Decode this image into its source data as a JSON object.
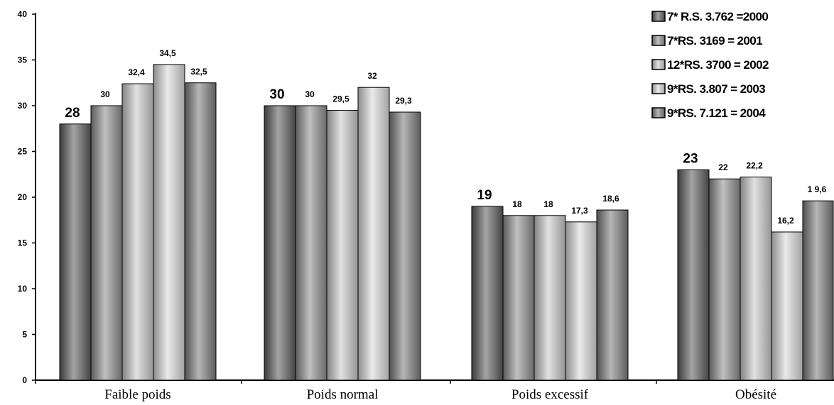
{
  "chart_data": {
    "type": "bar",
    "categories": [
      "Faible poids",
      "Poids normal",
      "Poids excessif",
      "Obésité"
    ],
    "ylim": [
      0,
      40
    ],
    "yticks": [
      0,
      5,
      10,
      15,
      20,
      25,
      30,
      35,
      40
    ],
    "ytick_labels": [
      "0",
      "5",
      "10",
      "15",
      "20",
      "25",
      "30",
      "35",
      "40"
    ],
    "grid": false,
    "legend_position": "top-right",
    "series": [
      {
        "name": "7* R.S. 3.762 =2000",
        "values": [
          28,
          30,
          19,
          23
        ],
        "data_labels": [
          "28",
          "30",
          "19",
          "23"
        ],
        "color": "#5a5a5a"
      },
      {
        "name": "7*RS. 3169 = 2001",
        "values": [
          30,
          30,
          18,
          22
        ],
        "data_labels": [
          "30",
          "30",
          "18",
          "22"
        ],
        "color": "#8c8c8c"
      },
      {
        "name": "12*RS. 3700 = 2002",
        "values": [
          32.4,
          29.5,
          18,
          22.2
        ],
        "data_labels": [
          "32,4",
          "29,5",
          "18",
          "22,2"
        ],
        "color": "#c8c8c8"
      },
      {
        "name": "9*RS. 3.807 = 2003",
        "values": [
          34.5,
          32,
          17.3,
          16.2
        ],
        "data_labels": [
          "34,5",
          "32",
          "17,3",
          "16,2"
        ],
        "color": "#d8d8d8"
      },
      {
        "name": "9*RS. 7.121 = 2004",
        "values": [
          32.5,
          29.3,
          18.6,
          19.6
        ],
        "data_labels": [
          "32,5",
          "29,3",
          "18,6",
          "1 9,6"
        ],
        "color": "#7a7a7a"
      }
    ]
  }
}
